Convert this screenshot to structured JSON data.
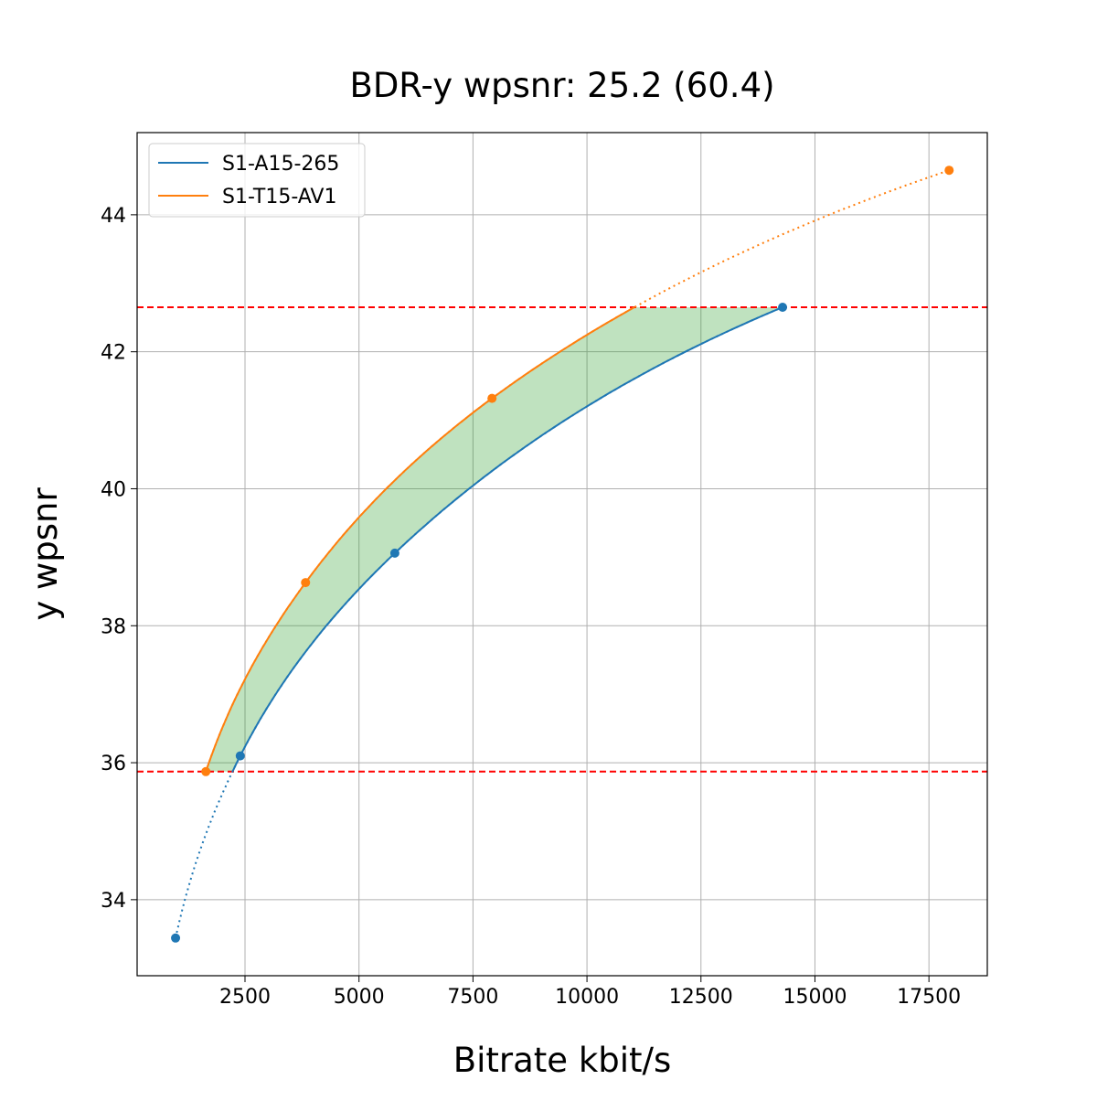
{
  "chart_data": {
    "type": "line",
    "title": "BDR-y wpsnr: 25.2 (60.4)",
    "xlabel": "Bitrate kbit/s",
    "ylabel": "y wpsnr",
    "xlim": [
      134,
      18780
    ],
    "ylim": [
      32.89,
      45.2
    ],
    "xticks": [
      2500,
      5000,
      7500,
      10000,
      12500,
      15000,
      17500
    ],
    "yticks": [
      34,
      36,
      38,
      40,
      42,
      44
    ],
    "grid": true,
    "legend_position": "top-left",
    "series": [
      {
        "name": "S1-A15-265",
        "color": "#1f77b4",
        "x": [
          977,
          2396,
          5786,
          14290
        ],
        "y": [
          33.44,
          36.1,
          39.06,
          42.65
        ]
      },
      {
        "name": "S1-T15-AV1",
        "color": "#ff7f0e",
        "x": [
          1642,
          3828,
          7917,
          17943
        ],
        "y": [
          35.87,
          38.63,
          41.32,
          44.65
        ]
      }
    ],
    "reference_lines": {
      "color": "#ff0000",
      "y": [
        42.65,
        35.87
      ]
    },
    "fill_color": "#2ca02c"
  }
}
